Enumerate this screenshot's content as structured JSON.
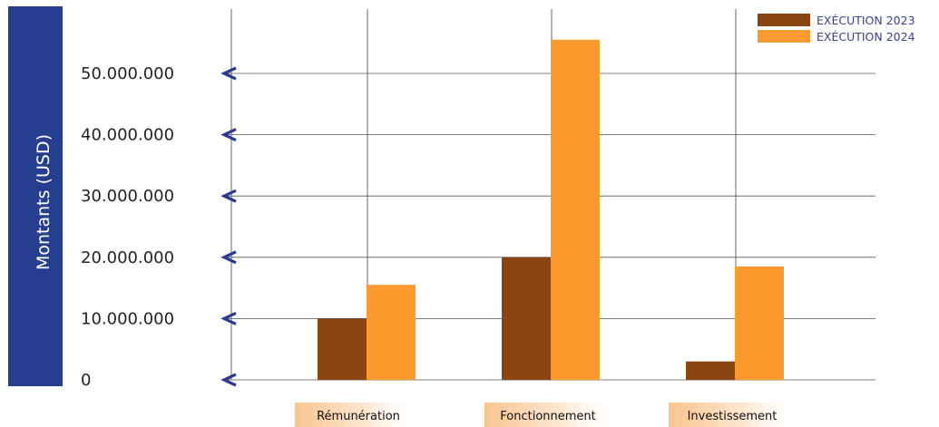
{
  "chart_data": {
    "type": "bar",
    "ylabel": "Montants (USD)",
    "categories": [
      "Rémunération",
      "Fonctionnement",
      "Investissement"
    ],
    "series": [
      {
        "name": "EXÉCUTION 2023",
        "color": "#8b4513",
        "values": [
          10000000,
          20000000,
          3000000
        ]
      },
      {
        "name": "EXÉCUTION 2024",
        "color": "#fb9a2e",
        "values": [
          15500000,
          55500000,
          18500000
        ]
      }
    ],
    "yticks": [
      0,
      10000000,
      20000000,
      30000000,
      40000000,
      50000000
    ],
    "ytick_labels": [
      "0",
      "10.000.000",
      "20.000.000",
      "30.000.000",
      "40.000.000",
      "50.000.000"
    ],
    "ylim": [
      0,
      57000000
    ],
    "grid": true,
    "legend_position": "top-right",
    "colors": {
      "axis_box": "#253f8e",
      "arrow": "#2b3a8c",
      "category_bg_light": "#fde6cf",
      "category_bg_dark": "#f9c58f"
    }
  }
}
